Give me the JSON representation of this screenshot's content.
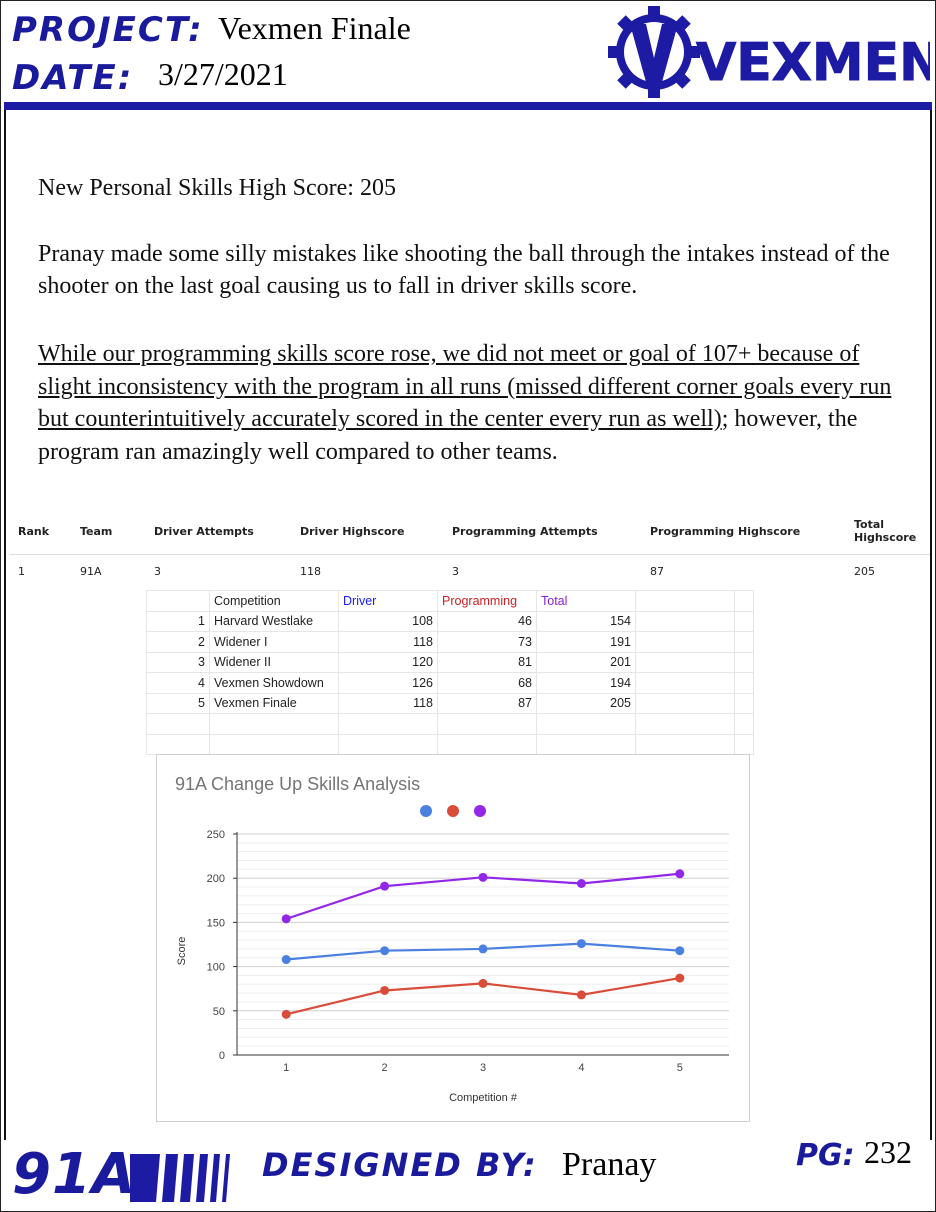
{
  "header": {
    "project_label": "PROJECT",
    "project_value": "Vexmen Finale",
    "date_label": "DATE",
    "date_value": "3/27/2021",
    "logo_text": "VEXMEN"
  },
  "body": {
    "high_score": "New Personal Skills High Score: 205",
    "para1": "Pranay made some silly mistakes like shooting the ball through the  intakes instead of the shooter on the last goal causing us to fall in driver skills score.",
    "para2_underlined": "While our programming skills score rose, we did not meet or goal of 107+ because of slight inconsistency with the program in all runs (missed different corner goals every run but counterintuitively accurately scored in the center every run as well)",
    "para2_rest": "; however, the program ran amazingly well compared to other teams."
  },
  "summary_table": {
    "headers": [
      "Rank",
      "Team",
      "Driver Attempts",
      "Driver Highscore",
      "Programming Attempts",
      "Programming Highscore",
      "Total Highscore"
    ],
    "row": [
      "1",
      "91A",
      "3",
      "118",
      "3",
      "87",
      "205"
    ]
  },
  "sheet": {
    "headers": [
      "Competition",
      "Driver",
      "Programming",
      "Total"
    ],
    "rows": [
      [
        "1",
        "Harvard Westlake",
        "108",
        "46",
        "154"
      ],
      [
        "2",
        "Widener I",
        "118",
        "73",
        "191"
      ],
      [
        "3",
        "Widener II",
        "120",
        "81",
        "201"
      ],
      [
        "4",
        "Vexmen Showdown",
        "126",
        "68",
        "194"
      ],
      [
        "5",
        "Vexmen Finale",
        "118",
        "87",
        "205"
      ]
    ],
    "colors": {
      "driver": "#1a1aff",
      "programming": "#cc2222",
      "total": "#8a22cc"
    }
  },
  "chart_data": {
    "type": "line",
    "title": "91A Change Up Skills Analysis",
    "xlabel": "Competition #",
    "ylabel": "Score",
    "categories": [
      "1",
      "2",
      "3",
      "4",
      "5"
    ],
    "ylim": [
      0,
      250
    ],
    "yticks": [
      "0",
      "50",
      "100",
      "150",
      "200",
      "250"
    ],
    "grid": true,
    "legend": "top-center, color dots only",
    "series": [
      {
        "values": [
          154,
          191,
          201,
          194,
          205
        ],
        "color": "#9327e8"
      },
      {
        "values": [
          108,
          118,
          120,
          126,
          118
        ],
        "color": "#4a80e0"
      },
      {
        "values": [
          46,
          73,
          81,
          68,
          87
        ],
        "color": "#d94c3a"
      }
    ]
  },
  "footer": {
    "team": "91A",
    "designed_label": "DESIGNED BY",
    "designed_value": "Pranay",
    "page_label": "PG",
    "page_value": "232"
  }
}
